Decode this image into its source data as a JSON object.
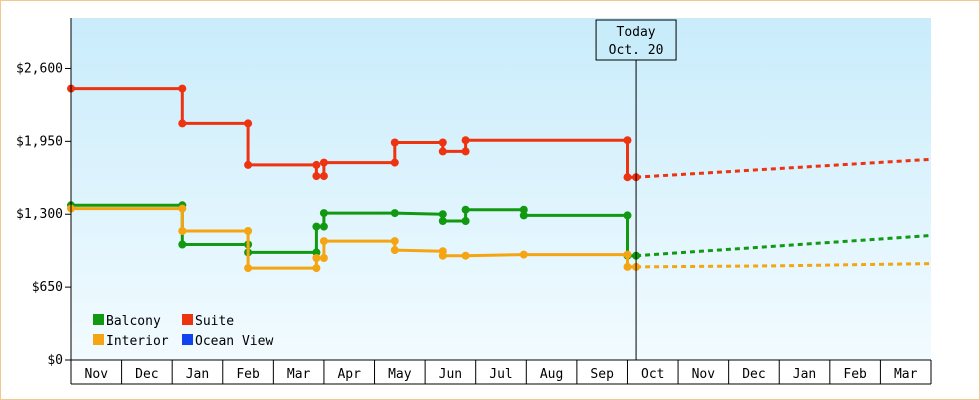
{
  "chart_data": {
    "type": "line",
    "step": true,
    "y_tick_labels": [
      "$0",
      "$650",
      "$1,300",
      "$1,950",
      "$2,600"
    ],
    "y_ticks": [
      0,
      650,
      1300,
      1950,
      2600
    ],
    "ylim": [
      0,
      3050
    ],
    "x_categories": [
      "Nov",
      "Dec",
      "Jan",
      "Feb",
      "Mar",
      "Apr",
      "May",
      "Jun",
      "Jul",
      "Aug",
      "Sep",
      "Oct",
      "Nov",
      "Dec",
      "Jan",
      "Feb",
      "Mar"
    ],
    "today_annotation": {
      "line1": "Today",
      "line2": "Oct. 20",
      "x": 11.17
    },
    "grid": false,
    "legend_placement": "bottom-left",
    "series": [
      {
        "name": "Balcony",
        "color": "#119911",
        "points": [
          [
            0,
            1380
          ],
          [
            2.2,
            1380
          ],
          [
            2.2,
            1030
          ],
          [
            3.5,
            1030
          ],
          [
            3.5,
            960
          ],
          [
            4.85,
            960
          ],
          [
            4.85,
            1190
          ],
          [
            5.0,
            1190
          ],
          [
            5.0,
            1310
          ],
          [
            6.4,
            1310
          ],
          [
            7.35,
            1300
          ],
          [
            7.35,
            1240
          ],
          [
            7.8,
            1240
          ],
          [
            7.8,
            1340
          ],
          [
            8.95,
            1340
          ],
          [
            8.95,
            1290
          ],
          [
            11.0,
            1290
          ],
          [
            11.0,
            930
          ],
          [
            11.17,
            930
          ]
        ],
        "markers_at": [
          0,
          1,
          2,
          3,
          4,
          5,
          6,
          7,
          8,
          9,
          10,
          11,
          12,
          13,
          14,
          15,
          16,
          17,
          18
        ],
        "forecast": [
          [
            11.17,
            930
          ],
          [
            17.0,
            1110
          ]
        ]
      },
      {
        "name": "Suite",
        "color": "#ee3311",
        "points": [
          [
            0,
            2420
          ],
          [
            2.2,
            2420
          ],
          [
            2.2,
            2110
          ],
          [
            3.5,
            2110
          ],
          [
            3.5,
            1740
          ],
          [
            4.85,
            1740
          ],
          [
            4.85,
            1640
          ],
          [
            5.0,
            1640
          ],
          [
            5.0,
            1760
          ],
          [
            6.4,
            1760
          ],
          [
            6.4,
            1940
          ],
          [
            7.35,
            1940
          ],
          [
            7.35,
            1860
          ],
          [
            7.8,
            1860
          ],
          [
            7.8,
            1960
          ],
          [
            11.0,
            1960
          ],
          [
            11.0,
            1630
          ],
          [
            11.17,
            1630
          ]
        ],
        "markers_at": [
          0,
          1,
          2,
          3,
          4,
          5,
          6,
          7,
          8,
          9,
          10,
          11,
          12,
          13,
          14,
          15,
          16,
          17
        ],
        "forecast": [
          [
            11.17,
            1630
          ],
          [
            17.0,
            1790
          ]
        ]
      },
      {
        "name": "Interior",
        "color": "#f5a511",
        "points": [
          [
            0,
            1350
          ],
          [
            2.2,
            1350
          ],
          [
            2.2,
            1150
          ],
          [
            3.5,
            1150
          ],
          [
            3.5,
            820
          ],
          [
            4.85,
            820
          ],
          [
            4.85,
            910
          ],
          [
            5.0,
            910
          ],
          [
            5.0,
            1060
          ],
          [
            6.4,
            1060
          ],
          [
            6.4,
            980
          ],
          [
            7.35,
            970
          ],
          [
            7.35,
            930
          ],
          [
            7.8,
            930
          ],
          [
            8.95,
            940
          ],
          [
            11.0,
            940
          ],
          [
            11.0,
            830
          ],
          [
            11.17,
            830
          ]
        ],
        "markers_at": [
          0,
          1,
          2,
          3,
          4,
          5,
          6,
          7,
          8,
          9,
          10,
          11,
          12,
          13,
          14,
          15,
          16,
          17
        ],
        "forecast": [
          [
            11.17,
            830
          ],
          [
            14.0,
            840
          ],
          [
            17.0,
            860
          ]
        ]
      },
      {
        "name": "Ocean View",
        "color": "#1144ee",
        "points": [],
        "markers_at": [],
        "forecast": []
      }
    ],
    "legend": [
      {
        "label": "Balcony",
        "color": "#119911"
      },
      {
        "label": "Suite",
        "color": "#ee3311"
      },
      {
        "label": "Interior",
        "color": "#f5a511"
      },
      {
        "label": "Ocean View",
        "color": "#1144ee"
      }
    ]
  }
}
